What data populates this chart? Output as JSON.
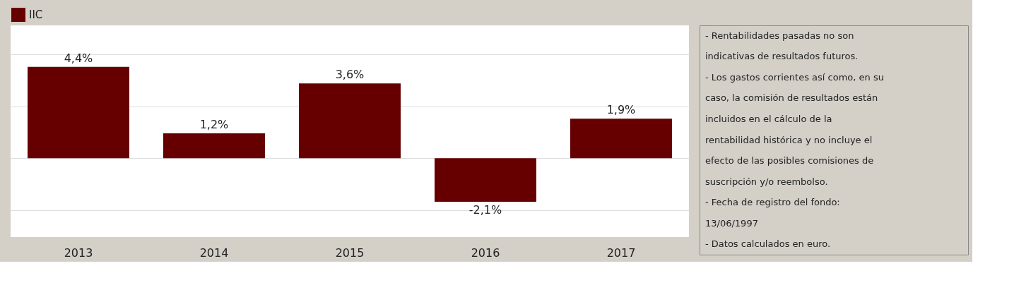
{
  "chart_data": {
    "type": "bar",
    "categories": [
      "2013",
      "2014",
      "2015",
      "2016",
      "2017"
    ],
    "series": [
      {
        "name": "IIC",
        "color": "#660000",
        "values": [
          4.4,
          1.2,
          3.6,
          -2.1,
          1.9
        ],
        "value_labels": [
          "4,4%",
          "1,2%",
          "3,6%",
          "-2,1%",
          "1,9%"
        ]
      }
    ],
    "ylim": [
      -3.8,
      6.4
    ],
    "yticks": [
      {
        "value": -2.5,
        "label": null
      },
      {
        "value": 0,
        "label": null
      },
      {
        "value": 2.5,
        "label": null
      },
      {
        "value": 5,
        "label": null
      }
    ],
    "tick_labels": "x",
    "grid": "y",
    "legend": "top",
    "annotations": [
      "- Rentabilidades pasadas no son",
      "indicativas de resultados futuros.",
      "- Los gastos corrientes así como, en su",
      "caso, la comisión de resultados están",
      "incluidos en el cálculo de la",
      "rentabilidad histórica y no incluye el",
      "efecto de las posibles comisiones de",
      "suscripción y/o reembolso.",
      "- Fecha de registro del fondo:",
      "13/06/1997",
      "- Datos calculados en euro."
    ]
  }
}
